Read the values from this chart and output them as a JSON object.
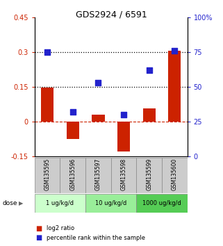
{
  "title": "GDS2924 / 6591",
  "samples": [
    "GSM135595",
    "GSM135596",
    "GSM135597",
    "GSM135598",
    "GSM135599",
    "GSM135600"
  ],
  "log2_ratio": [
    0.145,
    -0.075,
    0.03,
    -0.13,
    0.055,
    0.305
  ],
  "percentile_rank": [
    75,
    32,
    53,
    30,
    62,
    76
  ],
  "bar_color": "#cc2200",
  "dot_color": "#2222cc",
  "ylim_left": [
    -0.15,
    0.45
  ],
  "ylim_right": [
    0,
    100
  ],
  "yticks_left": [
    -0.15,
    0.0,
    0.15,
    0.3,
    0.45
  ],
  "ytick_labels_left": [
    "-0.15",
    "0",
    "0.15",
    "0.3",
    "0.45"
  ],
  "yticks_right": [
    0,
    25,
    50,
    75,
    100
  ],
  "ytick_labels_right": [
    "0",
    "25",
    "50",
    "75",
    "100%"
  ],
  "hlines_dotted": [
    0.15,
    0.3
  ],
  "hline_dashed_color": "#cc2200",
  "dose_groups": [
    {
      "label": "1 ug/kg/d",
      "color": "#ccffcc",
      "start": 0,
      "end": 1
    },
    {
      "label": "10 ug/kg/d",
      "color": "#99ee99",
      "start": 2,
      "end": 3
    },
    {
      "label": "1000 ug/kg/d",
      "color": "#55cc55",
      "start": 4,
      "end": 5
    }
  ],
  "dose_label": "dose",
  "legend_items": [
    {
      "label": "log2 ratio",
      "color": "#cc2200"
    },
    {
      "label": "percentile rank within the sample",
      "color": "#2222cc"
    }
  ],
  "bar_width": 0.5,
  "dot_size": 30,
  "sample_box_color": "#cccccc",
  "sample_box_edge": "#888888"
}
